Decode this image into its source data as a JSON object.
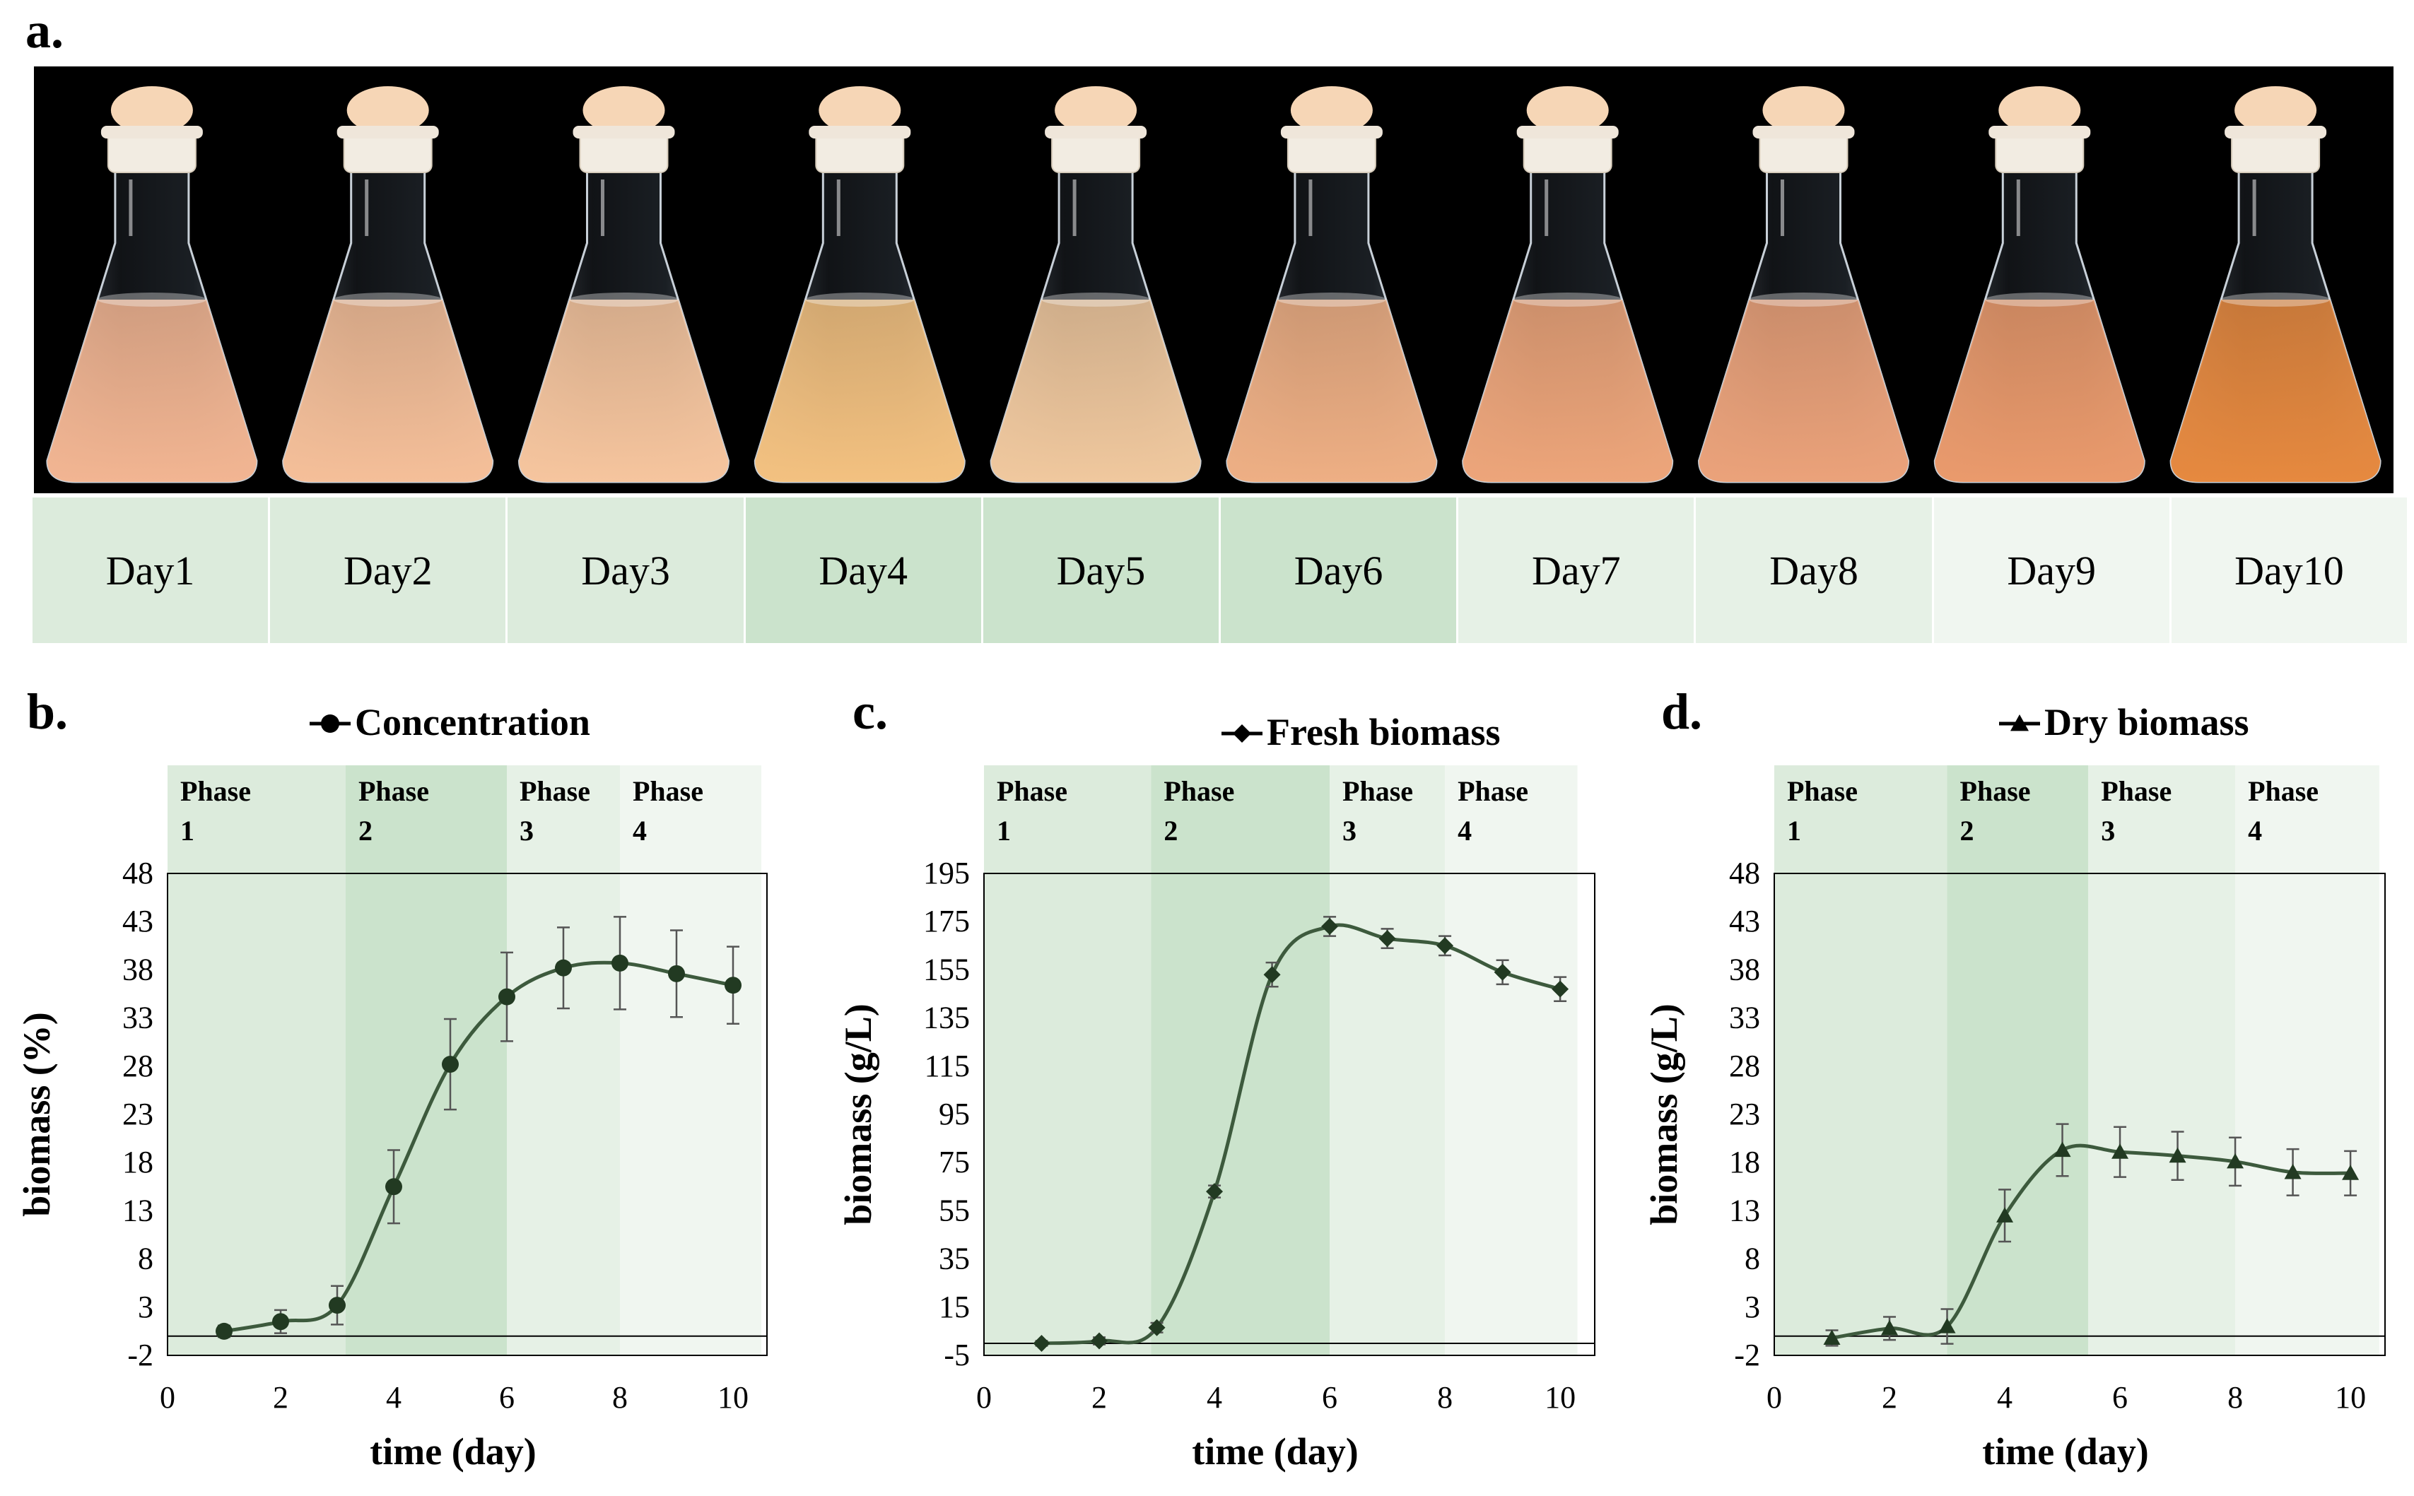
{
  "panel_labels": {
    "a": "a.",
    "b": "b.",
    "c": "c.",
    "d": "d."
  },
  "flasks": {
    "days": [
      "Day1",
      "Day2",
      "Day3",
      "Day4",
      "Day5",
      "Day6",
      "Day7",
      "Day8",
      "Day9",
      "Day10"
    ],
    "liquid_colors": [
      "#f2b592",
      "#f5bf99",
      "#f6c59e",
      "#f3c180",
      "#f0c89e",
      "#eeaf84",
      "#eda57a",
      "#eba27a",
      "#ea9a6c",
      "#e6893f"
    ],
    "day_cell_colors": [
      "#dcebdc",
      "#dcebdc",
      "#dcebdc",
      "#cbe3cc",
      "#cbe3cc",
      "#cbe3cc",
      "#e6f1e6",
      "#e6f1e6",
      "#f0f6f0",
      "#f0f6f0"
    ]
  },
  "chart_data": [
    {
      "type": "line",
      "title": "Concentration",
      "marker": "circle",
      "xlabel": "time (day)",
      "ylabel": "biomass (%)",
      "xlim": [
        0,
        10
      ],
      "ylim": [
        -2,
        48
      ],
      "xticks": [
        0,
        2,
        4,
        6,
        8,
        10
      ],
      "yticks": [
        -2,
        3,
        8,
        13,
        18,
        23,
        28,
        33,
        38,
        43,
        48
      ],
      "phases": [
        {
          "label": "Phase",
          "num": "1",
          "range": [
            0,
            3.15
          ]
        },
        {
          "label": "Phase",
          "num": "2",
          "range": [
            3.15,
            6
          ]
        },
        {
          "label": "Phase",
          "num": "3",
          "range": [
            6,
            8
          ]
        },
        {
          "label": "Phase",
          "num": "4",
          "range": [
            8,
            10.5
          ]
        }
      ],
      "x": [
        1,
        2,
        3,
        4,
        5,
        6,
        7,
        8,
        9,
        10
      ],
      "y": [
        0.5,
        1.5,
        3.2,
        15.5,
        28.2,
        35.2,
        38.2,
        38.7,
        37.6,
        36.4
      ],
      "err": [
        0.6,
        1.2,
        2.0,
        3.8,
        4.7,
        4.6,
        4.2,
        4.8,
        4.5,
        4.0
      ]
    },
    {
      "type": "line",
      "title": "Fresh biomass",
      "marker": "diamond",
      "xlabel": "time (day)",
      "ylabel": "biomass (g/L)",
      "xlim": [
        0,
        10
      ],
      "ylim": [
        -5,
        195
      ],
      "xticks": [
        0,
        2,
        4,
        6,
        8,
        10
      ],
      "yticks": [
        -5,
        15,
        35,
        55,
        75,
        95,
        115,
        135,
        155,
        175,
        195
      ],
      "phases": [
        {
          "label": "Phase",
          "num": "1",
          "range": [
            0,
            2.9
          ]
        },
        {
          "label": "Phase",
          "num": "2",
          "range": [
            2.9,
            6
          ]
        },
        {
          "label": "Phase",
          "num": "3",
          "range": [
            6,
            8
          ]
        },
        {
          "label": "Phase",
          "num": "4",
          "range": [
            8,
            10.3
          ]
        }
      ],
      "x": [
        1,
        2,
        3,
        4,
        5,
        6,
        7,
        8,
        9,
        10
      ],
      "y": [
        0,
        1,
        6.5,
        63,
        153,
        173,
        168,
        165,
        154,
        147
      ],
      "err": [
        1,
        1.5,
        2,
        2.5,
        5,
        4,
        4,
        4,
        5,
        5
      ]
    },
    {
      "type": "line",
      "title": "Dry biomass",
      "marker": "triangle",
      "xlabel": "time (day)",
      "ylabel": "biomass (g/L)",
      "xlim": [
        0,
        10
      ],
      "ylim": [
        -2,
        48
      ],
      "xticks": [
        0,
        2,
        4,
        6,
        8,
        10
      ],
      "yticks": [
        -2,
        3,
        8,
        13,
        18,
        23,
        28,
        33,
        38,
        43,
        48
      ],
      "phases": [
        {
          "label": "Phase",
          "num": "1",
          "range": [
            0,
            3
          ]
        },
        {
          "label": "Phase",
          "num": "2",
          "range": [
            3,
            5.45
          ]
        },
        {
          "label": "Phase",
          "num": "3",
          "range": [
            5.45,
            8
          ]
        },
        {
          "label": "Phase",
          "num": "4",
          "range": [
            8,
            10.5
          ]
        }
      ],
      "x": [
        1,
        2,
        3,
        4,
        5,
        6,
        7,
        8,
        9,
        10
      ],
      "y": [
        -0.2,
        0.8,
        1.0,
        12.5,
        19.3,
        19.1,
        18.7,
        18.1,
        17.0,
        16.9
      ],
      "err": [
        0.8,
        1.2,
        1.8,
        2.7,
        2.7,
        2.6,
        2.5,
        2.5,
        2.4,
        2.3
      ]
    }
  ],
  "phase_colors": [
    "#dcebdc",
    "#cbe3cc",
    "#e6f1e6",
    "#f0f6f0"
  ],
  "line_color": "#3d5a3d"
}
